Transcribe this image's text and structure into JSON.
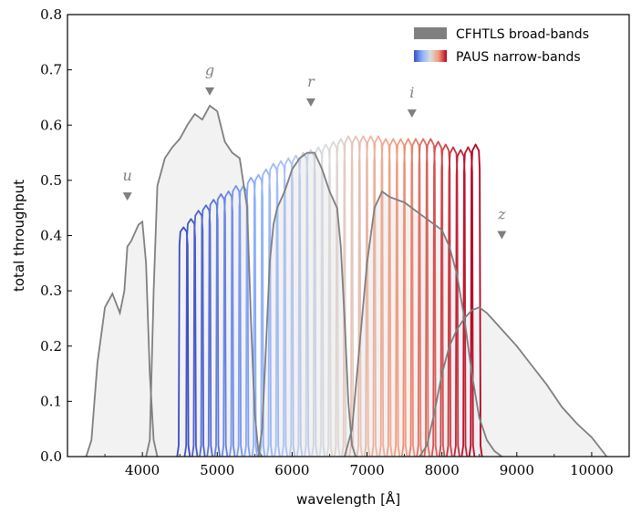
{
  "chart_data": {
    "type": "line",
    "xlabel": "wavelength [Å]",
    "ylabel": "total throughput",
    "xlim": [
      3000,
      10500
    ],
    "ylim": [
      0,
      0.8
    ],
    "x_ticks": [
      4000,
      5000,
      6000,
      7000,
      8000,
      9000,
      10000
    ],
    "y_ticks": [
      0.0,
      0.1,
      0.2,
      0.3,
      0.4,
      0.5,
      0.6,
      0.7,
      0.8
    ],
    "x_tick_labels": [
      "4000",
      "5000",
      "6000",
      "7000",
      "8000",
      "9000",
      "10000"
    ],
    "y_tick_labels": [
      "0.0",
      "0.1",
      "0.2",
      "0.3",
      "0.4",
      "0.5",
      "0.6",
      "0.7",
      "0.8"
    ],
    "grid": false,
    "legend_position": "top-right",
    "legend": [
      {
        "label": "CFHTLS broad-bands",
        "color": "#7f7f7f",
        "style": "solid-patch"
      },
      {
        "label": "PAUS narrow-bands",
        "colormap": "coolwarm",
        "style": "gradient-patch"
      }
    ],
    "broad_bands": [
      {
        "name": "u",
        "label_x": 3800,
        "marker_y": 0.47,
        "label_y": 0.5,
        "x": [
          3250,
          3320,
          3400,
          3500,
          3600,
          3700,
          3760,
          3800,
          3850,
          3900,
          3950,
          4000,
          4050,
          4100,
          4150,
          4200
        ],
        "y": [
          0,
          0.03,
          0.17,
          0.27,
          0.295,
          0.26,
          0.3,
          0.38,
          0.39,
          0.405,
          0.42,
          0.425,
          0.35,
          0.15,
          0.03,
          0
        ]
      },
      {
        "name": "g",
        "label_x": 4900,
        "marker_y": 0.66,
        "label_y": 0.69,
        "x": [
          4050,
          4100,
          4150,
          4200,
          4300,
          4400,
          4500,
          4600,
          4700,
          4800,
          4900,
          5000,
          5100,
          5200,
          5300,
          5400,
          5450,
          5500,
          5550,
          5600
        ],
        "y": [
          0,
          0.03,
          0.3,
          0.49,
          0.54,
          0.56,
          0.575,
          0.6,
          0.62,
          0.61,
          0.635,
          0.625,
          0.57,
          0.55,
          0.54,
          0.45,
          0.25,
          0.08,
          0.01,
          0
        ]
      },
      {
        "name": "r",
        "label_x": 6250,
        "marker_y": 0.64,
        "label_y": 0.67,
        "x": [
          5550,
          5600,
          5650,
          5700,
          5750,
          5800,
          5900,
          6000,
          6100,
          6200,
          6300,
          6400,
          6500,
          6600,
          6650,
          6700,
          6750,
          6800,
          6850
        ],
        "y": [
          0,
          0.05,
          0.2,
          0.35,
          0.42,
          0.45,
          0.48,
          0.52,
          0.54,
          0.55,
          0.55,
          0.52,
          0.48,
          0.45,
          0.38,
          0.25,
          0.1,
          0.02,
          0
        ]
      },
      {
        "name": "i",
        "label_x": 7600,
        "marker_y": 0.62,
        "label_y": 0.65,
        "x": [
          6700,
          6800,
          6900,
          7000,
          7100,
          7200,
          7300,
          7400,
          7500,
          7600,
          7700,
          7800,
          7900,
          8000,
          8100,
          8200,
          8300,
          8400,
          8500,
          8600,
          8700,
          8800
        ],
        "y": [
          0,
          0.05,
          0.2,
          0.35,
          0.45,
          0.48,
          0.47,
          0.465,
          0.46,
          0.45,
          0.44,
          0.43,
          0.42,
          0.41,
          0.38,
          0.33,
          0.25,
          0.15,
          0.07,
          0.03,
          0.01,
          0
        ]
      },
      {
        "name": "z",
        "label_x": 8800,
        "marker_y": 0.4,
        "label_y": 0.43,
        "x": [
          7700,
          7800,
          7900,
          8000,
          8100,
          8200,
          8300,
          8400,
          8500,
          8600,
          8700,
          8800,
          8900,
          9000,
          9200,
          9400,
          9600,
          9800,
          10000,
          10200
        ],
        "y": [
          0,
          0.02,
          0.08,
          0.15,
          0.2,
          0.23,
          0.25,
          0.265,
          0.27,
          0.26,
          0.245,
          0.23,
          0.215,
          0.2,
          0.165,
          0.13,
          0.09,
          0.06,
          0.035,
          0
        ]
      }
    ],
    "narrow_bands": {
      "count": 40,
      "first_center": 4550,
      "step": 100,
      "half_width": 65,
      "peak_throughput": [
        0.415,
        0.43,
        0.445,
        0.455,
        0.465,
        0.475,
        0.48,
        0.49,
        0.49,
        0.505,
        0.51,
        0.52,
        0.53,
        0.535,
        0.54,
        0.545,
        0.55,
        0.555,
        0.56,
        0.565,
        0.57,
        0.575,
        0.58,
        0.58,
        0.58,
        0.58,
        0.58,
        0.575,
        0.575,
        0.575,
        0.575,
        0.575,
        0.575,
        0.575,
        0.57,
        0.565,
        0.56,
        0.555,
        0.56,
        0.565
      ]
    }
  }
}
